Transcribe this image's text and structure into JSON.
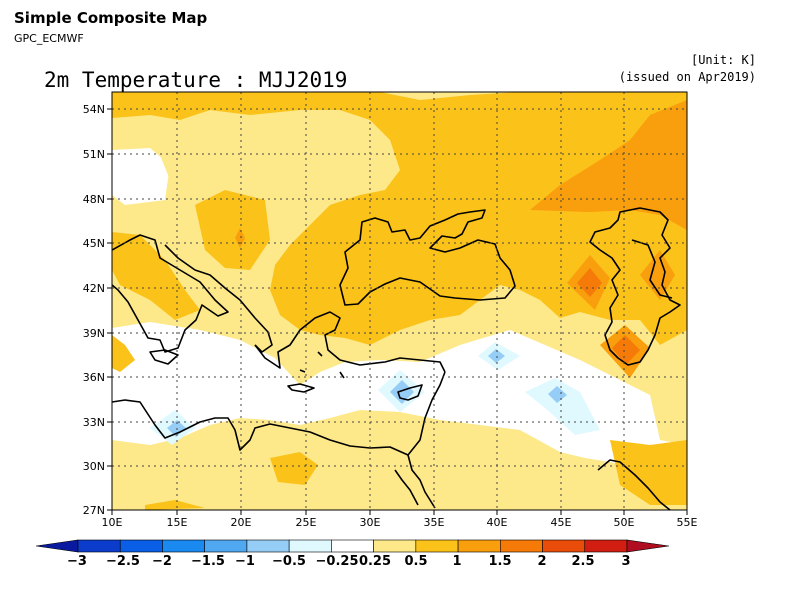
{
  "header": {
    "title": "Simple Composite Map",
    "subtitle": "GPC_ECMWF",
    "unit": "[Unit: K]",
    "issued": "(issued on Apr2019)"
  },
  "map": {
    "title": "2m Temperature : MJJ2019",
    "lat_labels": [
      "54N",
      "51N",
      "48N",
      "45N",
      "42N",
      "39N",
      "36N",
      "33N",
      "30N",
      "27N"
    ],
    "lon_labels": [
      "10E",
      "15E",
      "20E",
      "25E",
      "30E",
      "35E",
      "40E",
      "45E",
      "50E",
      "55E"
    ],
    "lat_range": [
      27,
      55
    ],
    "lon_range": [
      10,
      55
    ],
    "grid": "dotted",
    "region": "Mediterranean / Black Sea / Middle East"
  },
  "colorbar": {
    "labels": [
      "−3",
      "−2.5",
      "−2",
      "−1.5",
      "−1",
      "−0.5",
      "−0.25",
      "0.25",
      "0.5",
      "1",
      "1.5",
      "2",
      "2.5",
      "3"
    ],
    "colors": [
      "#0a1aa0",
      "#0b3ccc",
      "#0a5fe6",
      "#1a8af0",
      "#4fa8f0",
      "#96cdf6",
      "#dff9ff",
      "#ffffff",
      "#fde98a",
      "#fbc21a",
      "#f99e0c",
      "#f57a08",
      "#ea4d0a",
      "#d21e12",
      "#b00d20"
    ]
  }
}
